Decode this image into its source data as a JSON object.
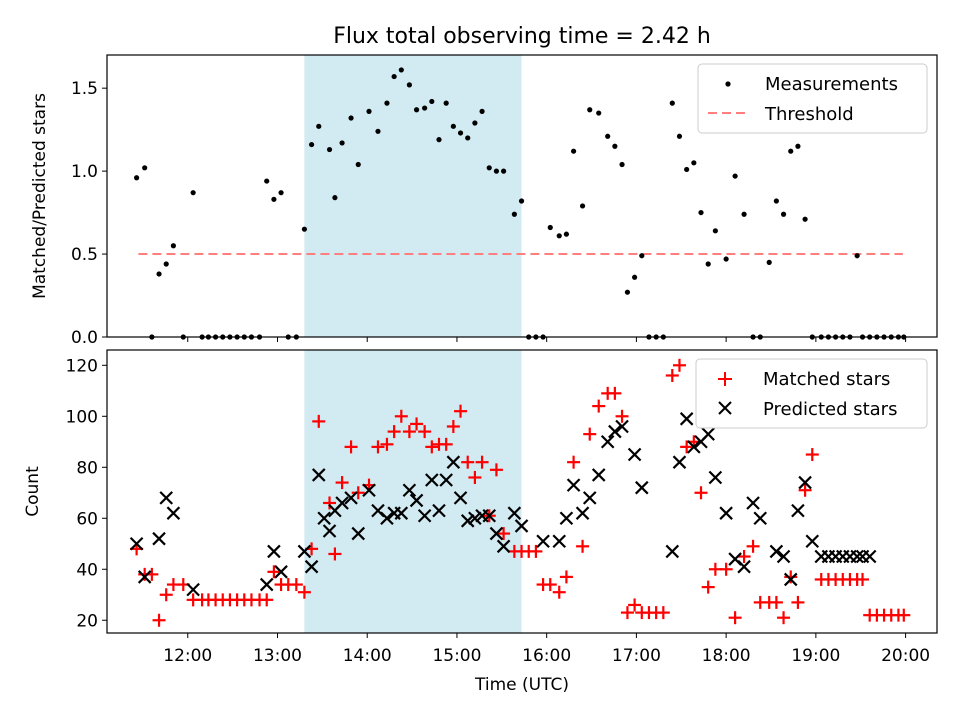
{
  "title": "Flux total observing time = 2.42 h",
  "colors": {
    "measurement": "#000000",
    "threshold": "#ff7f7f",
    "matched": "#ff0000",
    "predicted": "#000000",
    "shade": "#add8e6"
  },
  "chart_data": [
    {
      "type": "scatter",
      "ylabel": "Matched/Predicted stars",
      "xlabel": "",
      "xlim": [
        11.1,
        20.35
      ],
      "ylim": [
        0,
        1.7
      ],
      "yticks": [
        0,
        0.5,
        1.0,
        1.5
      ],
      "ytick_labels": [
        "0.0",
        "0.5",
        "1.0",
        "1.5"
      ],
      "xticks": [
        12,
        13,
        14,
        15,
        16,
        17,
        18,
        19,
        20
      ],
      "shaded_span": [
        13.3,
        15.72
      ],
      "legend": [
        "Measurements",
        "Threshold"
      ],
      "legend_position": "top-right",
      "threshold": {
        "name": "Threshold",
        "y": 0.5,
        "x_range": [
          11.45,
          19.97
        ]
      },
      "series": [
        {
          "name": "Measurements",
          "x": [
            11.43,
            11.52,
            11.6,
            11.68,
            11.76,
            11.84,
            11.95,
            12.06,
            12.16,
            12.23,
            12.31,
            12.39,
            12.47,
            12.55,
            12.63,
            12.71,
            12.8,
            12.88,
            12.96,
            13.04,
            13.12,
            13.21,
            13.3,
            13.38,
            13.46,
            13.58,
            13.64,
            13.72,
            13.82,
            13.9,
            14.02,
            14.12,
            14.22,
            14.3,
            14.38,
            14.47,
            14.55,
            14.64,
            14.72,
            14.8,
            14.88,
            14.96,
            15.04,
            15.12,
            15.2,
            15.28,
            15.36,
            15.44,
            15.52,
            15.64,
            15.72,
            15.8,
            15.88,
            15.96,
            16.04,
            16.14,
            16.22,
            16.3,
            16.4,
            16.48,
            16.58,
            16.68,
            16.76,
            16.84,
            16.9,
            16.98,
            17.06,
            17.14,
            17.22,
            17.3,
            17.4,
            17.48,
            17.56,
            17.64,
            17.72,
            17.8,
            17.88,
            18.0,
            18.1,
            18.2,
            18.3,
            18.38,
            18.48,
            18.56,
            18.64,
            18.72,
            18.8,
            18.88,
            18.96,
            19.06,
            19.14,
            19.22,
            19.3,
            19.38,
            19.46,
            19.52,
            19.6,
            19.68,
            19.76,
            19.84,
            19.92,
            19.98
          ],
          "y": [
            0.96,
            1.02,
            0.0,
            0.38,
            0.44,
            0.55,
            0.0,
            0.87,
            0.0,
            0.0,
            0.0,
            0.0,
            0.0,
            0.0,
            0.0,
            0.0,
            0.0,
            0.94,
            0.83,
            0.87,
            0.0,
            0.0,
            0.65,
            1.16,
            1.27,
            1.13,
            0.84,
            1.17,
            1.32,
            1.04,
            1.36,
            1.24,
            1.41,
            1.57,
            1.61,
            1.52,
            1.37,
            1.38,
            1.42,
            1.19,
            1.41,
            1.27,
            1.23,
            1.2,
            1.29,
            1.36,
            1.02,
            1.0,
            1.0,
            0.74,
            0.82,
            0.0,
            0.0,
            0.0,
            0.66,
            0.61,
            0.62,
            1.12,
            0.79,
            1.37,
            1.35,
            1.21,
            1.15,
            1.04,
            0.27,
            0.36,
            0.49,
            0.0,
            0.0,
            0.0,
            1.41,
            1.21,
            1.01,
            1.05,
            0.75,
            0.44,
            0.64,
            0.47,
            0.97,
            0.74,
            0.0,
            0.0,
            0.45,
            0.82,
            0.74,
            1.12,
            1.15,
            0.71,
            0.0,
            0.0,
            0.0,
            0.0,
            0.0,
            0.0,
            0.49,
            0.0,
            0.0,
            0.0,
            0.0,
            0.0,
            0.0,
            0.0
          ]
        }
      ]
    },
    {
      "type": "scatter",
      "ylabel": "Count",
      "xlabel": "Time (UTC)",
      "xlim": [
        11.1,
        20.35
      ],
      "ylim": [
        15,
        126
      ],
      "yticks": [
        20,
        40,
        60,
        80,
        100,
        120
      ],
      "ytick_labels": [
        "20",
        "40",
        "60",
        "80",
        "100",
        "120"
      ],
      "xticks": [
        12,
        13,
        14,
        15,
        16,
        17,
        18,
        19,
        20
      ],
      "xtick_labels": [
        "12:00",
        "13:00",
        "14:00",
        "15:00",
        "16:00",
        "17:00",
        "18:00",
        "19:00",
        "20:00"
      ],
      "shaded_span": [
        13.3,
        15.72
      ],
      "legend": [
        "Matched stars",
        "Predicted stars"
      ],
      "legend_position": "top-right",
      "series": [
        {
          "name": "Matched stars",
          "marker": "plus",
          "x": [
            11.43,
            11.52,
            11.6,
            11.68,
            11.76,
            11.84,
            11.95,
            12.06,
            12.16,
            12.23,
            12.31,
            12.39,
            12.47,
            12.55,
            12.63,
            12.71,
            12.8,
            12.88,
            12.96,
            13.04,
            13.12,
            13.21,
            13.3,
            13.38,
            13.46,
            13.58,
            13.64,
            13.72,
            13.82,
            13.9,
            14.02,
            14.12,
            14.22,
            14.3,
            14.38,
            14.47,
            14.55,
            14.64,
            14.72,
            14.8,
            14.88,
            14.96,
            15.04,
            15.12,
            15.2,
            15.28,
            15.36,
            15.44,
            15.52,
            15.64,
            15.72,
            15.8,
            15.88,
            15.96,
            16.04,
            16.14,
            16.22,
            16.3,
            16.4,
            16.48,
            16.58,
            16.68,
            16.76,
            16.84,
            16.9,
            16.98,
            17.06,
            17.14,
            17.22,
            17.3,
            17.4,
            17.48,
            17.56,
            17.64,
            17.72,
            17.8,
            17.88,
            18.0,
            18.1,
            18.2,
            18.3,
            18.38,
            18.48,
            18.56,
            18.64,
            18.72,
            18.8,
            18.88,
            18.96,
            19.06,
            19.14,
            19.22,
            19.3,
            19.38,
            19.46,
            19.52,
            19.6,
            19.68,
            19.76,
            19.84,
            19.92,
            19.98
          ],
          "y": [
            48,
            38,
            38,
            20,
            30,
            34,
            34,
            28,
            28,
            28,
            28,
            28,
            28,
            28,
            28,
            28,
            28,
            28,
            39,
            34,
            34,
            34,
            31,
            48,
            98,
            66,
            46,
            74,
            88,
            70,
            73,
            88,
            89,
            94,
            100,
            94,
            97,
            94,
            88,
            89,
            89,
            96,
            102,
            82,
            76,
            82,
            61,
            79,
            54,
            47,
            47,
            47,
            47,
            34,
            34,
            31,
            37,
            82,
            49,
            93,
            104,
            109,
            109,
            100,
            23,
            26,
            23,
            23,
            23,
            23,
            116,
            120,
            88,
            90,
            70,
            33,
            40,
            40,
            21,
            45,
            49,
            27,
            27,
            27,
            21,
            37,
            27,
            71,
            85,
            36,
            36,
            36,
            36,
            36,
            36,
            36,
            22,
            22,
            22,
            22,
            22,
            22
          ]
        },
        {
          "name": "Predicted stars",
          "marker": "x",
          "x": [
            11.43,
            11.52,
            11.68,
            11.76,
            11.84,
            12.06,
            12.88,
            12.96,
            13.04,
            13.3,
            13.38,
            13.46,
            13.52,
            13.58,
            13.64,
            13.72,
            13.82,
            13.9,
            14.02,
            14.12,
            14.22,
            14.3,
            14.38,
            14.47,
            14.55,
            14.64,
            14.72,
            14.8,
            14.88,
            14.96,
            15.04,
            15.12,
            15.2,
            15.28,
            15.36,
            15.44,
            15.52,
            15.64,
            15.72,
            15.96,
            16.14,
            16.22,
            16.3,
            16.4,
            16.48,
            16.58,
            16.68,
            16.76,
            16.84,
            16.98,
            17.06,
            17.4,
            17.48,
            17.56,
            17.64,
            17.72,
            17.8,
            17.88,
            18.0,
            18.1,
            18.2,
            18.3,
            18.38,
            18.56,
            18.64,
            18.72,
            18.8,
            18.88,
            18.96,
            19.06,
            19.14,
            19.22,
            19.3,
            19.38,
            19.46,
            19.52,
            19.6
          ],
          "y": [
            50,
            37,
            52,
            68,
            62,
            32,
            34,
            47,
            39,
            47,
            41,
            77,
            60,
            55,
            63,
            66,
            68,
            54,
            71,
            63,
            60,
            62,
            62,
            71,
            67,
            61,
            75,
            63,
            75,
            82,
            68,
            59,
            60,
            61,
            61,
            54,
            49,
            62,
            57,
            51,
            51,
            60,
            73,
            62,
            68,
            77,
            90,
            94,
            96,
            85,
            72,
            47,
            82,
            99,
            88,
            90,
            93,
            76,
            62,
            44,
            41,
            66,
            60,
            47,
            45,
            36,
            63,
            74,
            51,
            45,
            45,
            45,
            45,
            45,
            45,
            45,
            45
          ]
        }
      ]
    }
  ]
}
